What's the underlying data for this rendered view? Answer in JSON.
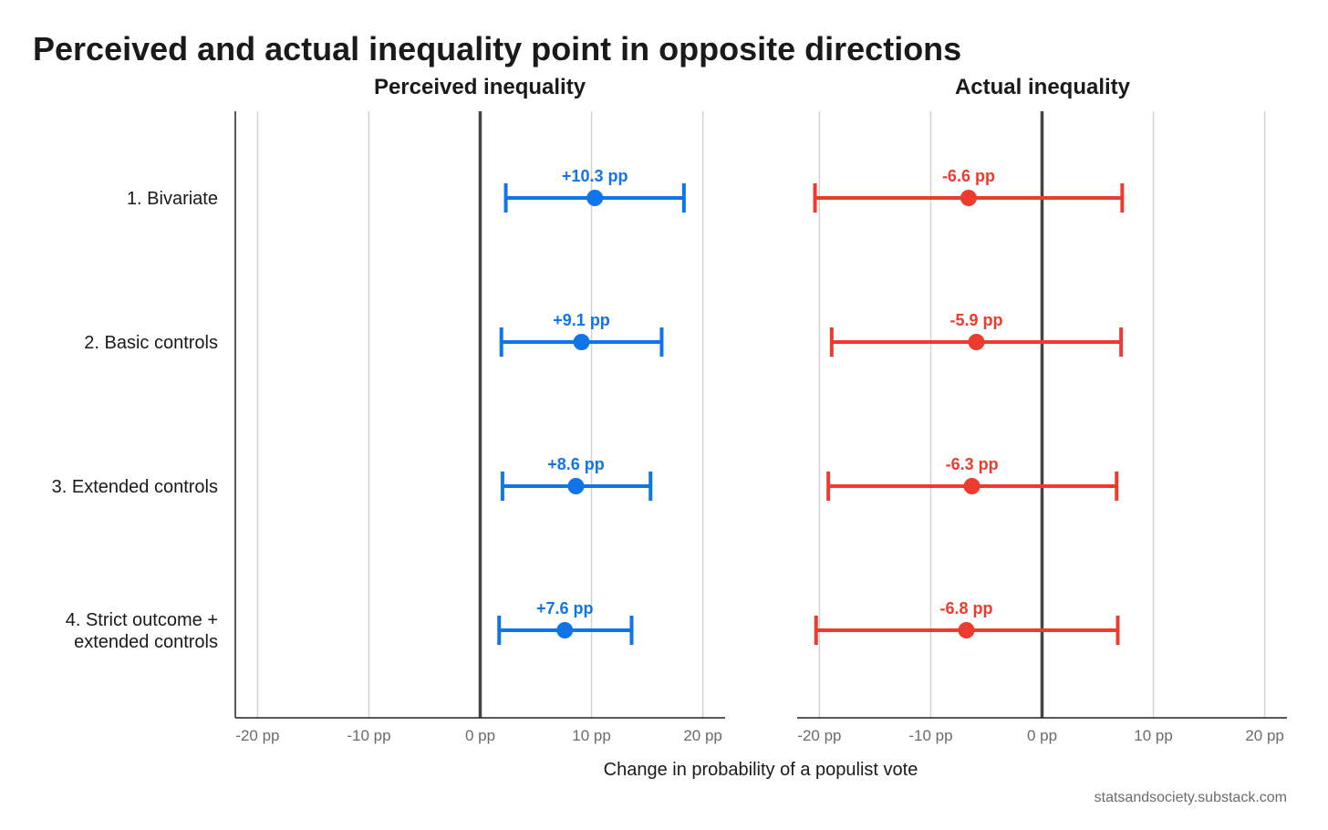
{
  "chart_data": {
    "type": "scatter",
    "title": "Perceived and actual inequality point in opposite directions",
    "xlabel": "Change in probability of a populist vote",
    "caption": "statsandsociety.substack.com",
    "xlim": [
      -22,
      22
    ],
    "xticks": [
      -20,
      -10,
      0,
      10,
      20
    ],
    "xtick_labels": [
      "-20 pp",
      "-10 pp",
      "0 pp",
      "10 pp",
      "20 pp"
    ],
    "grid": "vertical",
    "categories": [
      [
        "1. Bivariate"
      ],
      [
        "2. Basic controls"
      ],
      [
        "3. Extended controls"
      ],
      [
        "4. Strict outcome +",
        "extended controls"
      ]
    ],
    "panels": [
      {
        "title": "Perceived inequality",
        "color": "#1175ea",
        "estimates": [
          10.3,
          9.1,
          8.6,
          7.6
        ],
        "ci_low": [
          2.3,
          1.9,
          2.0,
          1.7
        ],
        "ci_high": [
          18.3,
          16.3,
          15.3,
          13.6
        ],
        "labels": [
          "+10.3 pp",
          "+9.1 pp",
          "+8.6 pp",
          "+7.6 pp"
        ]
      },
      {
        "title": "Actual inequality",
        "color": "#ee3b30",
        "estimates": [
          -6.6,
          -5.9,
          -6.3,
          -6.8
        ],
        "ci_low": [
          -20.4,
          -18.9,
          -19.2,
          -20.3
        ],
        "ci_high": [
          7.2,
          7.1,
          6.7,
          6.8
        ],
        "labels": [
          "-6.6 pp",
          "-5.9 pp",
          "-6.3 pp",
          "-6.8 pp"
        ]
      }
    ]
  }
}
